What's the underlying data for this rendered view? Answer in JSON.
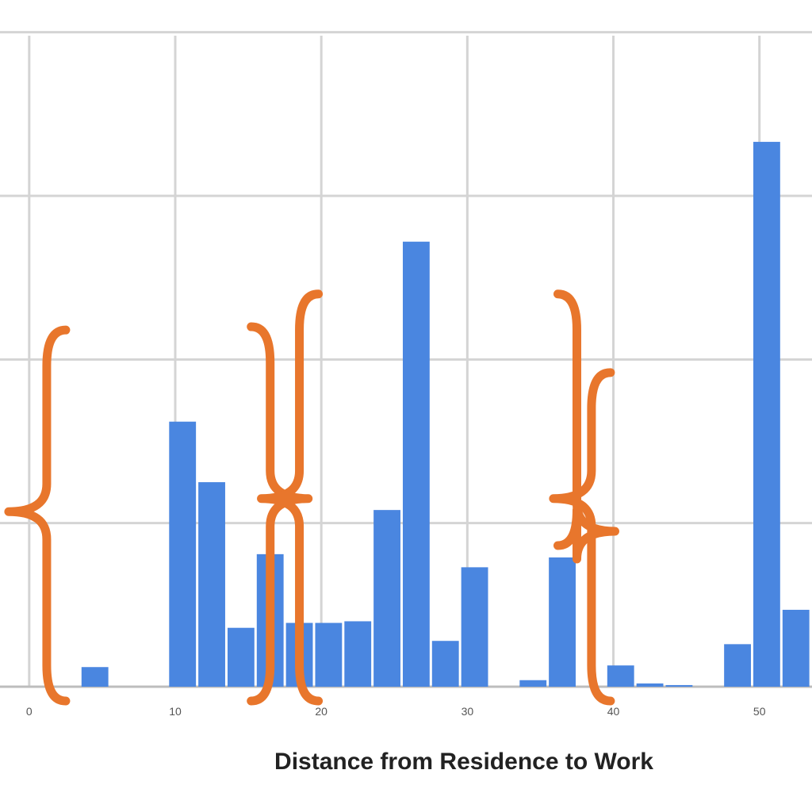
{
  "chart_data": {
    "type": "bar",
    "xlabel": "Distance from Residence to Work",
    "ylabel": "",
    "title": "",
    "x_ticks": [
      0,
      10,
      20,
      30,
      40,
      50
    ],
    "xlim": [
      -2,
      53.6
    ],
    "ylim": [
      0,
      4.1
    ],
    "y_gridlines": [
      0,
      1,
      2,
      3,
      4
    ],
    "grid": true,
    "bar_color": "#4a86e0",
    "bin_width": 2,
    "x": [
      4.5,
      10.5,
      12.5,
      14.5,
      16.5,
      18.5,
      20.5,
      22.5,
      24.5,
      26.5,
      28.5,
      30.5,
      34.5,
      36.5,
      40.5,
      42.5,
      44.5,
      48.5,
      50.5,
      52.5
    ],
    "values": [
      0.12,
      1.62,
      1.25,
      0.36,
      0.81,
      0.39,
      0.39,
      0.4,
      1.08,
      2.72,
      0.28,
      0.73,
      0.04,
      0.79,
      0.13,
      0.02,
      0.01,
      0.26,
      3.33,
      0.47
    ],
    "annotations": {
      "shape": "curly-brace",
      "color": "#e8762c",
      "braces": [
        {
          "x": 1.2,
          "y_top": 2.18,
          "y_bottom": 0.0,
          "y_point": 1.07,
          "points": "left"
        },
        {
          "x": 16.5,
          "y_top": 2.2,
          "y_bottom": 0.0,
          "y_point": 1.15,
          "points": "right"
        },
        {
          "x": 18.5,
          "y_top": 2.4,
          "y_bottom": 0.0,
          "y_point": 1.15,
          "points": "left"
        },
        {
          "x": 37.5,
          "y_top": 2.4,
          "y_bottom": 0.95,
          "y_point": 0.95,
          "points": "right"
        },
        {
          "x": 38.5,
          "y_top": 1.92,
          "y_bottom": 0.0,
          "y_point": 1.15,
          "points": "left"
        }
      ]
    }
  }
}
